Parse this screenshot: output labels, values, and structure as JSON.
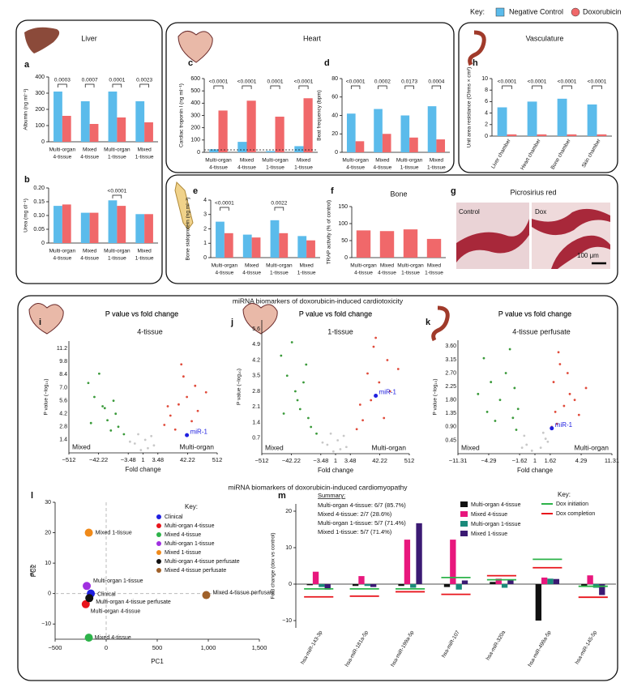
{
  "key": {
    "title": "Key:"
  },
  "sections": [
    "miRNA biomarkers of doxorubicin-induced cardiotoxicity",
    "miRNA biomarkers of doxorubicin-induced cardiomyopathy"
  ],
  "panel_g": {
    "panel": "g",
    "title": "Picrosirius red",
    "labels": [
      "Control",
      "Dox"
    ],
    "scale_bar": "100 μm"
  },
  "chart_data": [
    {
      "type": "bar",
      "panel": "a",
      "title": "Liver",
      "ylabel": "Albumin (ng ml⁻¹)",
      "categories": [
        [
          "Multi-organ",
          "4-tissue"
        ],
        [
          "Mixed",
          "4-tissue"
        ],
        [
          "Multi-organ",
          "1-tissue"
        ],
        [
          "Mixed",
          "1-tissue"
        ]
      ],
      "series": [
        {
          "name": "Negative Control",
          "color": "#5bbbeb",
          "values": [
            310,
            250,
            310,
            250
          ]
        },
        {
          "name": "Doxorubicin",
          "color": "#f0686a",
          "values": [
            160,
            110,
            150,
            120
          ]
        }
      ],
      "ylim": [
        0,
        400
      ],
      "yticks": [
        0,
        100,
        200,
        300,
        400
      ],
      "annotations": [
        "0.0003",
        "0.0007",
        "0.0001",
        "0.0023"
      ]
    },
    {
      "type": "bar",
      "panel": "b",
      "ylabel": "Urea (mg dl⁻¹)",
      "categories": [
        [
          "Multi-organ",
          "4-tissue"
        ],
        [
          "Mixed",
          "4-tissue"
        ],
        [
          "Multi-organ",
          "1-tissue"
        ],
        [
          "Mixed",
          "1-tissue"
        ]
      ],
      "series": [
        {
          "color": "#5bbbeb",
          "values": [
            0.135,
            0.11,
            0.155,
            0.105
          ]
        },
        {
          "color": "#f0686a",
          "values": [
            0.14,
            0.11,
            0.135,
            0.105
          ]
        }
      ],
      "ylim": [
        0,
        0.2
      ],
      "yticks": [
        0,
        0.05,
        {
          "value": 0.1,
          "label": "0.10"
        },
        0.15,
        {
          "value": 0.2,
          "label": "0.20"
        }
      ],
      "annotations": [
        null,
        null,
        "<0.0001",
        null
      ]
    },
    {
      "type": "bar",
      "panel": "c",
      "title": "Heart",
      "ylabel": "Cardiac troponin I (ng ml⁻¹)",
      "categories": [
        [
          "Multi-organ",
          "4-tissue"
        ],
        [
          "Mixed",
          "4-tissue"
        ],
        [
          "Multi-organ",
          "1-tissue"
        ],
        [
          "Mixed",
          "1-tissue"
        ]
      ],
      "series": [
        {
          "color": "#5bbbeb",
          "values": [
            25,
            85,
            10,
            50
          ]
        },
        {
          "color": "#f0686a",
          "values": [
            340,
            420,
            290,
            440
          ]
        }
      ],
      "ylim": [
        0,
        600
      ],
      "yticks": [
        0,
        100,
        200,
        300,
        400,
        500,
        600
      ],
      "ref_line": 20,
      "annotations": [
        "<0.0001",
        "<0.0001",
        "0.0001",
        "<0.0001"
      ]
    },
    {
      "type": "bar",
      "panel": "d",
      "ylabel": "Beat frequency (bpm)",
      "categories": [
        [
          "Multi-organ",
          "4-tissue"
        ],
        [
          "Mixed",
          "4-tissue"
        ],
        [
          "Multi-organ",
          "1-tissue"
        ],
        [
          "Mixed",
          "1-tissue"
        ]
      ],
      "series": [
        {
          "color": "#5bbbeb",
          "values": [
            42,
            47,
            40,
            50
          ]
        },
        {
          "color": "#f0686a",
          "values": [
            12,
            20,
            16,
            14
          ]
        }
      ],
      "ylim": [
        0,
        80
      ],
      "yticks": [
        0,
        20,
        40,
        60,
        80
      ],
      "annotations": [
        "<0.0001",
        "0.0002",
        "0.0173",
        "0.0004"
      ]
    },
    {
      "type": "bar",
      "panel": "e",
      "ylabel": "Bone sialoprotein (ng ml⁻¹)",
      "categories": [
        [
          "Multi-organ",
          "4-tissue"
        ],
        [
          "Mixed",
          "4-tissue"
        ],
        [
          "Multi-organ",
          "1-tissue"
        ],
        [
          "Mixed",
          "1-tissue"
        ]
      ],
      "series": [
        {
          "color": "#5bbbeb",
          "values": [
            2.5,
            1.6,
            2.6,
            1.5
          ]
        },
        {
          "color": "#f0686a",
          "values": [
            1.7,
            1.4,
            1.7,
            1.2
          ]
        }
      ],
      "ylim": [
        0,
        4
      ],
      "yticks": [
        0,
        1,
        2,
        3,
        4
      ],
      "annotations": [
        "<0.0001",
        null,
        "0.0022",
        null
      ]
    },
    {
      "type": "bar",
      "panel": "f",
      "title": "Bone",
      "ylabel": "TRAP activity (% of control)",
      "categories": [
        [
          "Multi-organ",
          "4-tissue"
        ],
        [
          "Mixed",
          "4-tissue"
        ],
        [
          "Multi-organ",
          "1-tissue"
        ],
        [
          "Mixed",
          "1-tissue"
        ]
      ],
      "series": [
        {
          "color": "#f0686a",
          "values": [
            80,
            78,
            83,
            55
          ]
        }
      ],
      "ylim": [
        0,
        150
      ],
      "yticks": [
        0,
        50,
        100,
        150
      ]
    },
    {
      "type": "bar",
      "panel": "h",
      "title": "Vasculature",
      "ylabel": "Unit area resistance (Ohms × cm²)",
      "categories": [
        "Liver chamber",
        "Heart chamber",
        "Bone chamber",
        "Skin chamber"
      ],
      "series": [
        {
          "color": "#5bbbeb",
          "values": [
            5,
            6,
            6.5,
            5.5
          ]
        },
        {
          "color": "#f0686a",
          "values": [
            0.3,
            0.3,
            0.3,
            0.3
          ]
        }
      ],
      "ylim": [
        0,
        10
      ],
      "yticks": [
        0,
        2,
        4,
        6,
        8,
        10
      ],
      "annotations": [
        "<0.0001",
        "<0.0001",
        "<0.0001",
        "<0.0001"
      ]
    },
    {
      "type": "volcano",
      "panel": "i",
      "title": "P value vs fold change",
      "subtitle": "4-tissue",
      "xlabel": "Fold change",
      "ylabel": "P value (−log₁₀)",
      "xscale": "signed-log2",
      "xlim": [
        -512,
        512
      ],
      "xticks": [
        {
          "value": -512,
          "label": "−512"
        },
        {
          "value": -42.22,
          "label": "−42.22"
        },
        {
          "value": -3.48,
          "label": "−3.48"
        },
        1,
        3.48,
        42.22,
        512
      ],
      "ylim": [
        0,
        12
      ],
      "yticks": [
        1.4,
        2.8,
        4.2,
        5.6,
        {
          "value": 7,
          "label": "7.0"
        },
        8.4,
        9.8,
        11.2
      ],
      "series": [
        {
          "color": "#c8c8c8",
          "x": [
            -2,
            1.5,
            -1.5,
            2,
            -3,
            2.5,
            -1.2,
            1.2
          ],
          "values": [
            1,
            0.5,
            2,
            1.8,
            1.2,
            0.8,
            0.3,
            1.4
          ]
        },
        {
          "color": "#3a9a3a",
          "x": [
            -20,
            -30,
            -10,
            -60,
            -8,
            -100,
            -15,
            -40,
            -5,
            -25,
            -80,
            -12
          ],
          "values": [
            3.5,
            5,
            4.2,
            6,
            2.8,
            7.5,
            2.4,
            8.5,
            2,
            4.8,
            3.2,
            5.6
          ]
        },
        {
          "color": "#e04b3b",
          "x": [
            10,
            20,
            40,
            80,
            6,
            15,
            100,
            30,
            60,
            8,
            200,
            25
          ],
          "values": [
            4,
            5.2,
            6,
            7.2,
            3,
            2.5,
            4.5,
            8.2,
            3.4,
            5,
            6.5,
            9.5
          ]
        }
      ],
      "highlight": {
        "label": "miR-1",
        "x": 40,
        "y": 1.9,
        "color": "#2020e0"
      },
      "left_label": "Mixed",
      "right_label": "Multi-organ"
    },
    {
      "type": "volcano",
      "panel": "j",
      "title": "P value vs fold change",
      "subtitle": "1-tissue",
      "xlabel": "Fold change",
      "ylabel": "P value (−log₁₀)",
      "xscale": "signed-log2",
      "xlim": [
        -512,
        512
      ],
      "xticks": [
        {
          "value": -512,
          "label": "−512"
        },
        {
          "value": -42.22,
          "label": "−42.22"
        },
        {
          "value": -3.48,
          "label": "−3.48"
        },
        1,
        3.48,
        42.22,
        512
      ],
      "ylim": [
        0,
        6
      ],
      "yticks": [
        0.7,
        1.4,
        2.1,
        2.8,
        3.5,
        4.2,
        4.9,
        5.6
      ],
      "series": [
        {
          "color": "#c8c8c8",
          "x": [
            -2,
            1.5,
            -1.5,
            2,
            -3,
            2.5,
            -1.2,
            1.2
          ],
          "values": [
            0.4,
            0.2,
            0.9,
            0.8,
            0.5,
            0.3,
            0.1,
            0.6
          ]
        },
        {
          "color": "#3a9a3a",
          "x": [
            -20,
            -30,
            -10,
            -60,
            -8,
            -100,
            -15,
            -40,
            -5,
            -25,
            -80,
            -12
          ],
          "values": [
            2,
            2.8,
            1.6,
            3.5,
            1.2,
            4.4,
            3.2,
            5,
            0.9,
            2.4,
            1.8,
            4
          ]
        },
        {
          "color": "#e04b3b",
          "x": [
            10,
            20,
            40,
            80,
            6,
            15,
            100,
            30,
            60,
            8,
            200,
            25
          ],
          "values": [
            1.5,
            2.4,
            3.2,
            4.2,
            1.1,
            3.6,
            2.8,
            5.2,
            1.6,
            2.2,
            3.8,
            4.8
          ]
        }
      ],
      "highlight": {
        "label": "miR-1",
        "x": 30,
        "y": 2.6,
        "color": "#2020e0"
      },
      "left_label": "Mixed",
      "right_label": "Multi-organ"
    },
    {
      "type": "volcano",
      "panel": "k",
      "title": "P value vs fold change",
      "subtitle": "4-tissue perfusate",
      "xlabel": "Fold change",
      "ylabel": "P value (−log₁₀)",
      "xscale": "signed-log2",
      "xlim": [
        -11.31,
        11.31
      ],
      "xticks": [
        {
          "value": -11.31,
          "label": "−11.31"
        },
        {
          "value": -4.29,
          "label": "−4.29"
        },
        {
          "value": -1.62,
          "label": "−1.62"
        },
        1,
        1.62,
        4.29,
        11.31
      ],
      "ylim": [
        0,
        3.8
      ],
      "yticks": [
        0.45,
        {
          "value": 0.9,
          "label": "0.90"
        },
        1.35,
        {
          "value": 1.8,
          "label": "1.80"
        },
        2.25,
        {
          "value": 2.7,
          "label": "2.70"
        },
        3.15,
        {
          "value": 3.6,
          "label": "3.60"
        }
      ],
      "series": [
        {
          "color": "#c8c8c8",
          "x": [
            -1.3,
            1.2,
            -1.4,
            1.4,
            -1.1,
            1.5,
            -1.5,
            1.3
          ],
          "values": [
            0.3,
            0.2,
            0.6,
            0.5,
            0.1,
            0.4,
            0.2,
            0.7
          ]
        },
        {
          "color": "#3a9a3a",
          "x": [
            -2,
            -3,
            -1.8,
            -4,
            -1.7,
            -5,
            -2.5,
            -3.5,
            -6,
            -2.2,
            -1.9,
            -4.5
          ],
          "values": [
            1.2,
            1.8,
            0.8,
            2.4,
            1.5,
            3.2,
            2.7,
            1.1,
            2,
            3.5,
            2.2,
            1.4
          ]
        },
        {
          "color": "#e04b3b",
          "x": [
            2,
            2.5,
            1.8,
            3,
            1.7,
            2.2,
            4,
            2.8,
            3.5,
            1.9,
            5,
            2.1
          ],
          "values": [
            1,
            1.6,
            2.4,
            2,
            0.9,
            3,
            1.3,
            2.7,
            1.8,
            1.4,
            2.2,
            3.4
          ]
        }
      ],
      "highlight": {
        "label": "miR-1",
        "x": 1.7,
        "y": 0.85,
        "color": "#2020e0"
      },
      "left_label": "Mixed",
      "right_label": "Multi-organ"
    },
    {
      "type": "scatter",
      "panel": "l",
      "xlabel": "PC1",
      "ylabel": "PC2",
      "legend_title": "Key:",
      "xlim": [
        -500,
        1500
      ],
      "xticks": [
        {
          "value": -500,
          "label": "−500"
        },
        0,
        500,
        {
          "value": 1000,
          "label": "1,000"
        },
        {
          "value": 1500,
          "label": "1,500"
        }
      ],
      "ylim": [
        -15,
        30
      ],
      "yticks": [
        {
          "value": -10,
          "label": "−10"
        },
        0,
        10,
        20,
        30
      ],
      "series": [
        {
          "name": "Clinical",
          "color": "#1f1fe0",
          "x": [
            -150
          ],
          "values": [
            0
          ]
        },
        {
          "name": "Multi-organ 4-tissue",
          "color": "#e8141b",
          "x": [
            -200
          ],
          "values": [
            -3.5
          ]
        },
        {
          "name": "Mixed 4-tissue",
          "color": "#2db34a",
          "x": [
            -170
          ],
          "values": [
            -14.5
          ]
        },
        {
          "name": "Multi-organ 1-tissue",
          "color": "#a030e0",
          "x": [
            -190
          ],
          "values": [
            2.5
          ]
        },
        {
          "name": "Mixed 1-tissue",
          "color": "#f08a1a",
          "x": [
            -170
          ],
          "values": [
            20
          ]
        },
        {
          "name": "Multi-organ 4-tissue perfusate",
          "color": "#111111",
          "x": [
            -165
          ],
          "values": [
            -1.5
          ]
        },
        {
          "name": "Mixed 4-tissue perfusate",
          "color": "#a0612a",
          "x": [
            980
          ],
          "values": [
            -0.5
          ]
        }
      ]
    },
    {
      "type": "bar",
      "panel": "m",
      "ylabel": "Fold change (dox vs control)",
      "legend_title": "Key:",
      "summary_title": "Summary:",
      "summary": [
        "Multi-organ 4-tissue: 6/7 (85.7%)",
        "Mixed 4-tissue: 2/7 (28.6%)",
        "Multi-organ 1-tissue: 5/7 (71.4%)",
        "Mixed 1-tissue: 5/7 (71.4%)"
      ],
      "categories": [
        "hsa-miR-143-3p",
        "hsa-miR-181a-5p",
        "hsa-miR-199a-5p",
        "hsa-miR-107",
        "hsa-miR-320a",
        "hsa-miR-499a-5p",
        "hsa-miR-145-5p"
      ],
      "series": [
        {
          "name": "Multi-organ 4-tissue",
          "color": "#111111",
          "values": [
            -0.3,
            -0.5,
            -0.5,
            -0.8,
            0.6,
            -10,
            -0.5
          ]
        },
        {
          "name": "Mixed 4-tissue",
          "color": "#e8177d",
          "values": [
            3.4,
            2.2,
            12.2,
            12.2,
            1.5,
            1.8,
            2.4
          ]
        },
        {
          "name": "Multi-organ 1-tissue",
          "color": "#1a8a7a",
          "values": [
            -0.8,
            -0.5,
            -1,
            -1.5,
            -1,
            1.5,
            -1
          ]
        },
        {
          "name": "Mixed 1-tissue",
          "color": "#3b1a73",
          "values": [
            -1.5,
            -0.8,
            16.7,
            1,
            1.2,
            1.4,
            -3
          ]
        }
      ],
      "markers": [
        {
          "name": "Dox initiation",
          "color": "#2db34a",
          "values": [
            -1.3,
            -1.3,
            -1.3,
            1.8,
            1.2,
            6.8,
            -0.6
          ]
        },
        {
          "name": "Dox completion",
          "color": "#e8141b",
          "values": [
            -3.5,
            -3.3,
            -2.1,
            -2.8,
            2.3,
            4.5,
            -3.6
          ]
        }
      ],
      "ylim": [
        -12,
        22
      ],
      "yticks": [
        {
          "value": -10,
          "label": "−10"
        },
        0,
        10,
        20
      ]
    }
  ]
}
